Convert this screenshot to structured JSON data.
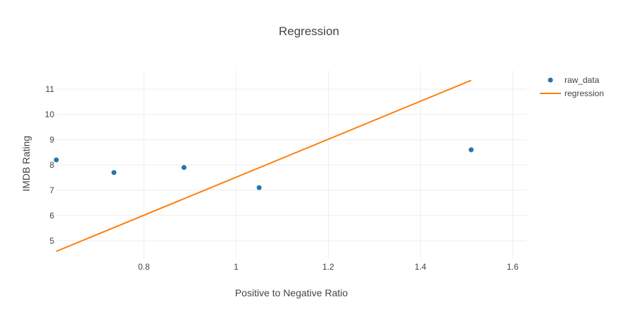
{
  "chart_data": {
    "type": "scatter",
    "title": "Regression",
    "xlabel": "Positive to Negative Ratio",
    "ylabel": "IMDB Rating",
    "xlim": [
      0.61,
      1.63
    ],
    "ylim": [
      4.3,
      11.75
    ],
    "x_ticks": [
      0.8,
      1,
      1.2,
      1.4,
      1.6
    ],
    "y_ticks": [
      5,
      6,
      7,
      8,
      9,
      10,
      11
    ],
    "grid": true,
    "legend_position": "top-right",
    "series": [
      {
        "name": "raw_data",
        "mode": "markers",
        "color": "#1f77b4",
        "x": [
          0.61,
          0.735,
          0.887,
          1.05,
          1.51
        ],
        "y": [
          8.2,
          7.7,
          7.9,
          7.1,
          8.6
        ]
      },
      {
        "name": "regression",
        "mode": "lines",
        "color": "#ff7f0e",
        "x": [
          0.61,
          1.51
        ],
        "y": [
          4.58,
          11.35
        ]
      }
    ]
  }
}
